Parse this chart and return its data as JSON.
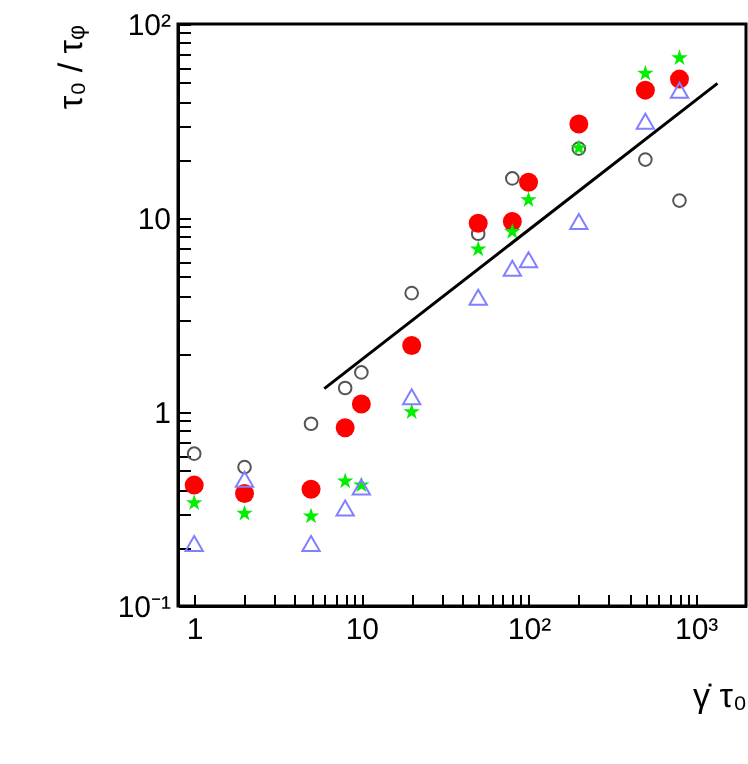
{
  "chart_data": {
    "type": "scatter",
    "xlabel": "γ̇ τ₀",
    "ylabel": "τ₀ / τᵩ",
    "log": "xy",
    "grid": false,
    "xlim": [
      0.8,
      2000
    ],
    "ylim": [
      0.1,
      100
    ],
    "xticks": [
      {
        "value": 1,
        "label": "1"
      },
      {
        "value": 2,
        "label": null
      },
      {
        "value": 3,
        "label": null
      },
      {
        "value": 4,
        "label": null
      },
      {
        "value": 5,
        "label": null
      },
      {
        "value": 6,
        "label": null
      },
      {
        "value": 7,
        "label": null
      },
      {
        "value": 8,
        "label": null
      },
      {
        "value": 9,
        "label": null
      },
      {
        "value": 10,
        "label": "10"
      },
      {
        "value": 20,
        "label": null
      },
      {
        "value": 30,
        "label": null
      },
      {
        "value": 40,
        "label": null
      },
      {
        "value": 50,
        "label": null
      },
      {
        "value": 60,
        "label": null
      },
      {
        "value": 70,
        "label": null
      },
      {
        "value": 80,
        "label": null
      },
      {
        "value": 90,
        "label": null
      },
      {
        "value": 100,
        "label": "10²"
      },
      {
        "value": 200,
        "label": null
      },
      {
        "value": 300,
        "label": null
      },
      {
        "value": 400,
        "label": null
      },
      {
        "value": 500,
        "label": null
      },
      {
        "value": 600,
        "label": null
      },
      {
        "value": 700,
        "label": null
      },
      {
        "value": 800,
        "label": null
      },
      {
        "value": 900,
        "label": null
      },
      {
        "value": 1000,
        "label": "10³"
      }
    ],
    "yticks": [
      {
        "value": 0.1,
        "label": "10⁻¹"
      },
      {
        "value": 0.2,
        "label": null
      },
      {
        "value": 0.3,
        "label": null
      },
      {
        "value": 0.4,
        "label": null
      },
      {
        "value": 0.5,
        "label": null
      },
      {
        "value": 0.6,
        "label": null
      },
      {
        "value": 0.7,
        "label": null
      },
      {
        "value": 0.8,
        "label": null
      },
      {
        "value": 0.9,
        "label": null
      },
      {
        "value": 1,
        "label": "1"
      },
      {
        "value": 2,
        "label": null
      },
      {
        "value": 3,
        "label": null
      },
      {
        "value": 4,
        "label": null
      },
      {
        "value": 5,
        "label": null
      },
      {
        "value": 6,
        "label": null
      },
      {
        "value": 7,
        "label": null
      },
      {
        "value": 8,
        "label": null
      },
      {
        "value": 9,
        "label": null
      },
      {
        "value": 10,
        "label": "10"
      },
      {
        "value": 20,
        "label": null
      },
      {
        "value": 30,
        "label": null
      },
      {
        "value": 40,
        "label": null
      },
      {
        "value": 50,
        "label": null
      },
      {
        "value": 60,
        "label": null
      },
      {
        "value": 70,
        "label": null
      },
      {
        "value": 80,
        "label": null
      },
      {
        "value": 90,
        "label": null
      },
      {
        "value": 100,
        "label": "10²"
      }
    ],
    "x": [
      1,
      2,
      5,
      8,
      10,
      20,
      50,
      80,
      100,
      200,
      500,
      800
    ],
    "series": [
      {
        "color": "#555555",
        "marker": "circle",
        "x": [
          1,
          2,
          5,
          8,
          10,
          20,
          50,
          80,
          200,
          500,
          800
        ],
        "values": [
          0.61,
          0.52,
          0.87,
          1.33,
          1.6,
          4.1,
          8.3,
          16,
          22.8,
          20,
          12.3
        ]
      },
      {
        "color": "#ff0000",
        "marker": "circle",
        "values": [
          0.42,
          0.38,
          0.4,
          0.83,
          1.1,
          2.2,
          9.4,
          9.6,
          15.3,
          30.5,
          45.6,
          52
        ]
      },
      {
        "color": "#00ee00",
        "marker": "star",
        "values": [
          0.34,
          0.3,
          0.29,
          0.44,
          0.42,
          1.0,
          6.9,
          8.5,
          12.4,
          23,
          55.6,
          66.8
        ]
      },
      {
        "color": "#8080ff",
        "marker": "triangle",
        "values": [
          0.21,
          0.45,
          0.21,
          0.32,
          0.41,
          1.2,
          3.9,
          5.5,
          6.1,
          9.6,
          31.5,
          45.6
        ]
      },
      {
        "type": "line",
        "color": "#000000",
        "marker": "none",
        "x": [
          6,
          1350
        ],
        "values": [
          1.32,
          49.4
        ]
      }
    ]
  }
}
